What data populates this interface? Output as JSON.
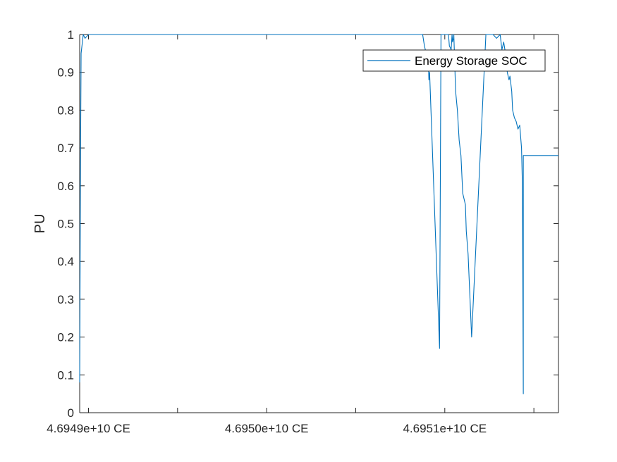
{
  "chart_data": {
    "type": "line",
    "title": "",
    "xlabel": "",
    "ylabel": "PU",
    "ylim": [
      0,
      1
    ],
    "xlim": [
      0,
      2.6874
    ],
    "grid": false,
    "legend_position": "top-right",
    "colors": {
      "series": "#0072BD",
      "axis": "#262626",
      "background": "#ffffff"
    },
    "y_ticks": [
      {
        "value": 0,
        "label": "0"
      },
      {
        "value": 0.1,
        "label": "0.1"
      },
      {
        "value": 0.2,
        "label": "0.2"
      },
      {
        "value": 0.3,
        "label": "0.3"
      },
      {
        "value": 0.4,
        "label": "0.4"
      },
      {
        "value": 0.5,
        "label": "0.5"
      },
      {
        "value": 0.6,
        "label": "0.6"
      },
      {
        "value": 0.7,
        "label": "0.7"
      },
      {
        "value": 0.8,
        "label": "0.8"
      },
      {
        "value": 0.9,
        "label": "0.9"
      },
      {
        "value": 1,
        "label": "1"
      }
    ],
    "x_ticks": [
      {
        "value": 0.0494,
        "label": "4.6949e+10 CE"
      },
      {
        "value": 0.5494,
        "label": ""
      },
      {
        "value": 1.0494,
        "label": "4.6950e+10 CE"
      },
      {
        "value": 1.5494,
        "label": ""
      },
      {
        "value": 2.0494,
        "label": "4.6951e+10 CE"
      },
      {
        "value": 2.5494,
        "label": ""
      }
    ],
    "series": [
      {
        "name": "Energy Storage SOC",
        "x": [
          0,
          0.004,
          0.008,
          0.02,
          0.03,
          0.05,
          1.0,
          1.5,
          1.7,
          1.732,
          1.85,
          1.92,
          1.925,
          1.935,
          1.94,
          1.945,
          1.95,
          1.955,
          1.958,
          1.96,
          1.964,
          2.02,
          2.028,
          2.04,
          2.06,
          2.07,
          2.075,
          2.085,
          2.09,
          2.093,
          2.098,
          2.1,
          2.11,
          2.12,
          2.13,
          2.14,
          2.15,
          2.16,
          2.165,
          2.17,
          2.18,
          2.2,
          2.28,
          2.3,
          2.32,
          2.34,
          2.36,
          2.37,
          2.38,
          2.39,
          2.4,
          2.41,
          2.415,
          2.42,
          2.425,
          2.43,
          2.44,
          2.45,
          2.46,
          2.47,
          2.48,
          2.485,
          2.49,
          2.49,
          2.6874
        ],
        "y": [
          0.08,
          0.6,
          0.95,
          1.0,
          0.99,
          1.0,
          1.0,
          1.0,
          1.0,
          1.0,
          1.0,
          1.0,
          1.0,
          0.97,
          0.96,
          0.93,
          0.93,
          0.91,
          0.92,
          0.88,
          0.9,
          0.17,
          1.0,
          1.0,
          1.0,
          1.0,
          0.97,
          0.96,
          1.0,
          0.98,
          0.99,
          1.0,
          0.85,
          0.8,
          0.72,
          0.68,
          0.58,
          0.56,
          0.55,
          0.48,
          0.42,
          0.2,
          1.0,
          1.0,
          1.0,
          0.99,
          1.0,
          0.96,
          0.98,
          0.95,
          0.9,
          0.88,
          0.89,
          0.87,
          0.85,
          0.8,
          0.78,
          0.77,
          0.75,
          0.76,
          0.7,
          0.6,
          0.05,
          0.68,
          0.68
        ]
      }
    ]
  }
}
